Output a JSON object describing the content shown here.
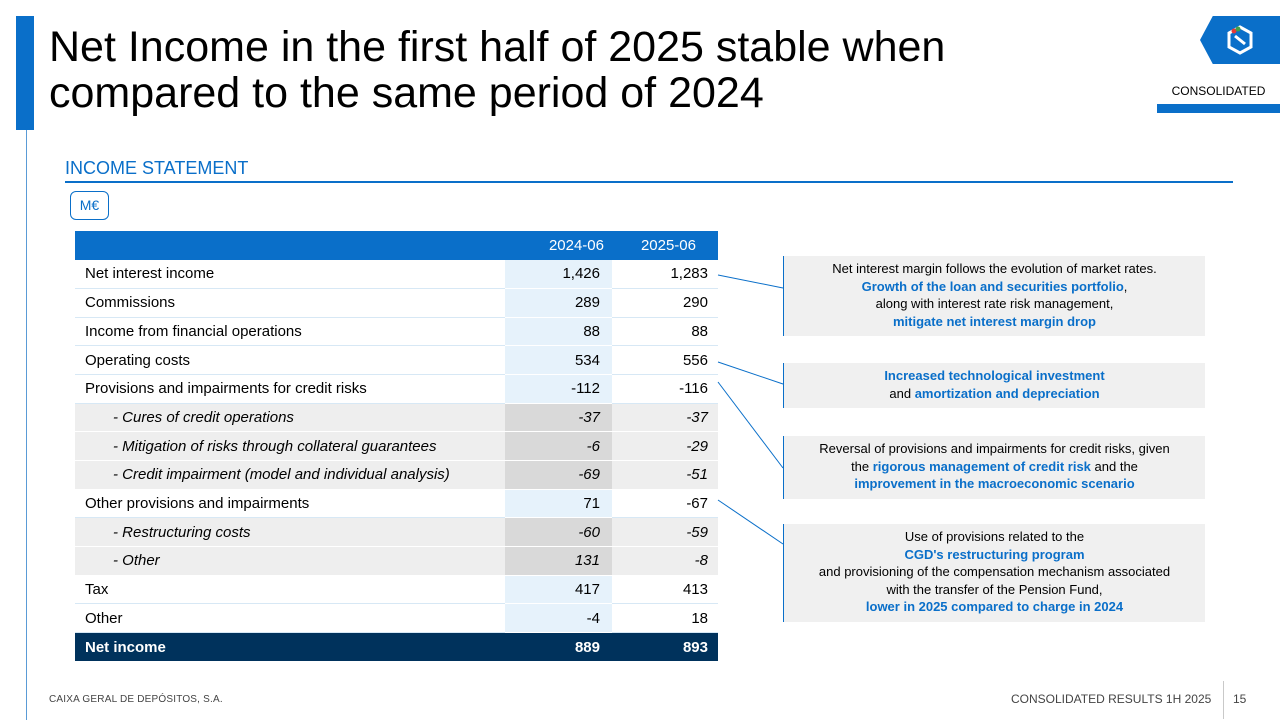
{
  "title": "Net Income in the first half of 2025 stable when compared to the same period of 2024",
  "tag": "CONSOLIDATED",
  "section_label": "INCOME STATEMENT",
  "unit": "M€",
  "table": {
    "headers": [
      "",
      "2024-06",
      "2025-06"
    ],
    "rows": [
      {
        "label": "Net interest income",
        "v2024": "1,426",
        "v2025": "1,283"
      },
      {
        "label": "Commissions",
        "v2024": "289",
        "v2025": "290"
      },
      {
        "label": "Income from financial operations",
        "v2024": "88",
        "v2025": "88"
      },
      {
        "label": "Operating costs",
        "v2024": "534",
        "v2025": "556"
      },
      {
        "label": "Provisions and impairments for credit risks",
        "v2024": "-112",
        "v2025": "-116"
      },
      {
        "label": "- Cures of credit operations",
        "v2024": "-37",
        "v2025": "-37"
      },
      {
        "label": "- Mitigation of risks through collateral guarantees",
        "v2024": "-6",
        "v2025": "-29"
      },
      {
        "label": "- Credit impairment (model and individual analysis)",
        "v2024": "-69",
        "v2025": "-51"
      },
      {
        "label": "Other provisions and impairments",
        "v2024": "71",
        "v2025": "-67"
      },
      {
        "label": "- Restructuring costs",
        "v2024": "-60",
        "v2025": "-59"
      },
      {
        "label": "- Other",
        "v2024": "131",
        "v2025": "-8"
      },
      {
        "label": "Tax",
        "v2024": "417",
        "v2025": "413"
      },
      {
        "label": "Other",
        "v2024": "-4",
        "v2025": "18"
      },
      {
        "label": "Net income",
        "v2024": "889",
        "v2025": "893"
      }
    ]
  },
  "notes": [
    {
      "line1": "Net interest margin follows the evolution of market rates.",
      "line2": "Growth of the loan and securities portfolio",
      "line2_suffix": ",",
      "line3": "along with interest rate risk management,",
      "line4": "mitigate net interest margin drop"
    },
    {
      "line1": "Increased technological investment",
      "line2_prefix": "and ",
      "line2": "amortization and depreciation"
    },
    {
      "line1": "Reversal of provisions and impairments for credit risks, given",
      "line2_prefix": "the ",
      "line2": "rigorous management of credit risk",
      "line2_suffix": " and the",
      "line3": "improvement in the macroeconomic scenario"
    },
    {
      "line1": "Use of provisions related to the",
      "line2": "CGD's restructuring program",
      "line3": "and provisioning of the compensation mechanism associated",
      "line4": "with the transfer of the Pension Fund,",
      "line5": "lower in 2025 compared to charge in 2024"
    }
  ],
  "footer": {
    "company": "CAIXA GERAL DE DEPÓSITOS, S.A.",
    "report": "CONSOLIDATED RESULTS 1H 2025",
    "page": "15"
  },
  "colors": {
    "brand_blue": "#0a6fc9",
    "dark_navy": "#00325c",
    "note_bg": "#f0f0f0"
  }
}
